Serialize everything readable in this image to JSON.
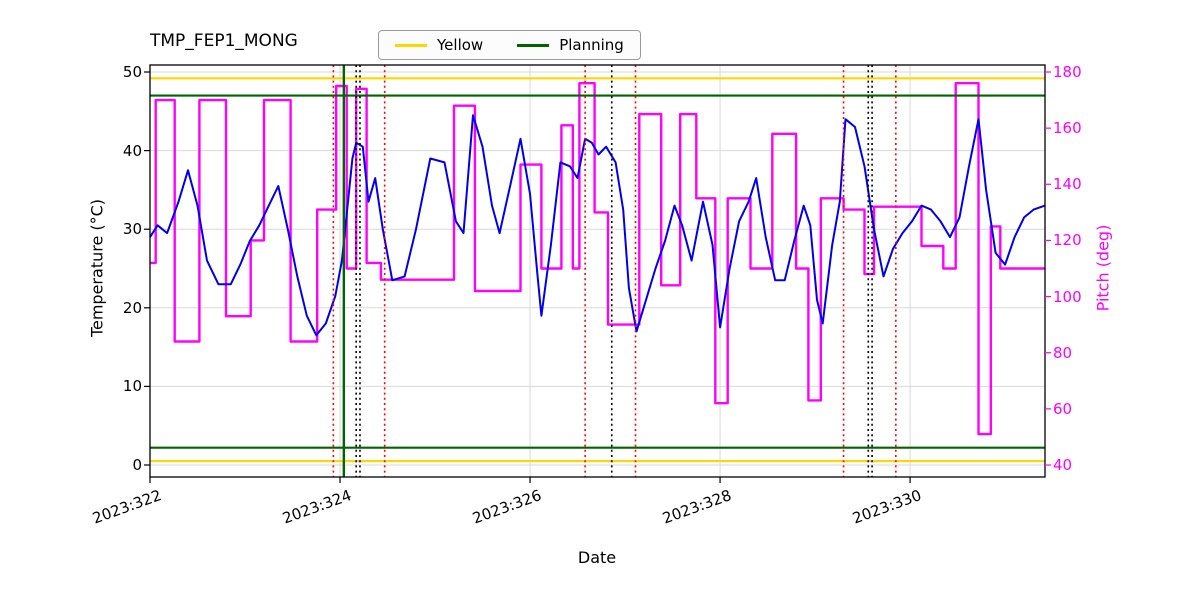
{
  "chart_data": {
    "type": "line",
    "title": "TMP_FEP1_MONG",
    "xlabel": "Date",
    "ylabel_left": "Temperature (°C)",
    "ylabel_right": "Pitch (deg)",
    "grid": true,
    "x_axis": {
      "tick_labels": [
        "2023:322",
        "2023:324",
        "2023:326",
        "2023:328",
        "2023:330"
      ],
      "tick_values": [
        322,
        324,
        326,
        328,
        330
      ],
      "range": [
        322,
        331.42
      ]
    },
    "y_left_axis": {
      "ticks": [
        0,
        10,
        20,
        30,
        40,
        50
      ],
      "range": [
        0,
        50
      ],
      "color": "#000000"
    },
    "y_right_axis": {
      "ticks": [
        40,
        60,
        80,
        100,
        120,
        140,
        160,
        180
      ],
      "range": [
        40,
        180
      ],
      "color": "#ff00ff"
    },
    "legend": {
      "position": "top",
      "items": [
        {
          "label": "Yellow",
          "color": "#ffd700"
        },
        {
          "label": "Planning",
          "color": "#006400"
        }
      ]
    },
    "series": [
      {
        "name": "pitch",
        "axis": "right",
        "color": "#ff00ff",
        "style": "step",
        "width": 2.4,
        "points": [
          [
            322.0,
            112
          ],
          [
            322.06,
            170
          ],
          [
            322.26,
            84
          ],
          [
            322.52,
            170
          ],
          [
            322.8,
            93
          ],
          [
            323.06,
            120
          ],
          [
            323.2,
            170
          ],
          [
            323.48,
            84
          ],
          [
            323.76,
            131
          ],
          [
            323.96,
            175
          ],
          [
            324.07,
            110
          ],
          [
            324.17,
            174
          ],
          [
            324.28,
            112
          ],
          [
            324.43,
            106
          ],
          [
            325.2,
            168
          ],
          [
            325.42,
            102
          ],
          [
            325.9,
            147
          ],
          [
            326.12,
            110
          ],
          [
            326.33,
            161
          ],
          [
            326.45,
            110
          ],
          [
            326.52,
            176
          ],
          [
            326.68,
            130
          ],
          [
            326.82,
            90
          ],
          [
            327.15,
            165
          ],
          [
            327.38,
            104
          ],
          [
            327.58,
            165
          ],
          [
            327.75,
            135
          ],
          [
            327.95,
            62
          ],
          [
            328.08,
            135
          ],
          [
            328.32,
            110
          ],
          [
            328.55,
            158
          ],
          [
            328.8,
            110
          ],
          [
            328.93,
            63
          ],
          [
            329.06,
            135
          ],
          [
            329.3,
            131
          ],
          [
            329.52,
            108
          ],
          [
            329.62,
            132
          ],
          [
            330.12,
            118
          ],
          [
            330.35,
            110
          ],
          [
            330.48,
            176
          ],
          [
            330.72,
            51
          ],
          [
            330.85,
            125
          ],
          [
            330.95,
            110
          ],
          [
            331.42,
            110
          ]
        ]
      },
      {
        "name": "temperature",
        "axis": "left",
        "color": "#0000ee",
        "style": "line",
        "width": 2,
        "points": [
          [
            322.0,
            29
          ],
          [
            322.08,
            30.5
          ],
          [
            322.18,
            29.5
          ],
          [
            322.3,
            33.5
          ],
          [
            322.4,
            37.5
          ],
          [
            322.5,
            33
          ],
          [
            322.6,
            26
          ],
          [
            322.72,
            23
          ],
          [
            322.85,
            23
          ],
          [
            322.95,
            25.5
          ],
          [
            323.05,
            28.5
          ],
          [
            323.15,
            30.5
          ],
          [
            323.25,
            33
          ],
          [
            323.35,
            35.5
          ],
          [
            323.45,
            30
          ],
          [
            323.55,
            24
          ],
          [
            323.65,
            19
          ],
          [
            323.75,
            16.5
          ],
          [
            323.85,
            18
          ],
          [
            323.95,
            21.5
          ],
          [
            324.02,
            26
          ],
          [
            324.08,
            33
          ],
          [
            324.13,
            39
          ],
          [
            324.17,
            41
          ],
          [
            324.24,
            40.5
          ],
          [
            324.3,
            33.5
          ],
          [
            324.37,
            36.5
          ],
          [
            324.45,
            30
          ],
          [
            324.55,
            23.5
          ],
          [
            324.68,
            24
          ],
          [
            324.8,
            30
          ],
          [
            324.95,
            39
          ],
          [
            325.1,
            38.5
          ],
          [
            325.22,
            31
          ],
          [
            325.3,
            29.5
          ],
          [
            325.4,
            44.5
          ],
          [
            325.5,
            40.5
          ],
          [
            325.6,
            33
          ],
          [
            325.68,
            29.5
          ],
          [
            325.8,
            36
          ],
          [
            325.9,
            41.5
          ],
          [
            326.0,
            34.5
          ],
          [
            326.08,
            24
          ],
          [
            326.12,
            19
          ],
          [
            326.22,
            28
          ],
          [
            326.32,
            38.5
          ],
          [
            326.42,
            38
          ],
          [
            326.5,
            36.5
          ],
          [
            326.58,
            41.5
          ],
          [
            326.65,
            41
          ],
          [
            326.72,
            39.5
          ],
          [
            326.8,
            40.5
          ],
          [
            326.9,
            38.5
          ],
          [
            326.98,
            32.5
          ],
          [
            327.04,
            22.5
          ],
          [
            327.12,
            17
          ],
          [
            327.22,
            21
          ],
          [
            327.32,
            25
          ],
          [
            327.42,
            28.5
          ],
          [
            327.52,
            33
          ],
          [
            327.6,
            30.5
          ],
          [
            327.7,
            26
          ],
          [
            327.82,
            33.5
          ],
          [
            327.92,
            28
          ],
          [
            328.0,
            17.5
          ],
          [
            328.1,
            25
          ],
          [
            328.2,
            31
          ],
          [
            328.3,
            33.5
          ],
          [
            328.38,
            36.5
          ],
          [
            328.48,
            29
          ],
          [
            328.58,
            23.5
          ],
          [
            328.68,
            23.5
          ],
          [
            328.78,
            28.5
          ],
          [
            328.88,
            33
          ],
          [
            328.95,
            30.5
          ],
          [
            329.02,
            21
          ],
          [
            329.08,
            18
          ],
          [
            329.18,
            28
          ],
          [
            329.26,
            33.5
          ],
          [
            329.32,
            44
          ],
          [
            329.42,
            43
          ],
          [
            329.52,
            38
          ],
          [
            329.62,
            30
          ],
          [
            329.72,
            24
          ],
          [
            329.82,
            27.5
          ],
          [
            329.92,
            29.5
          ],
          [
            330.02,
            31
          ],
          [
            330.12,
            33
          ],
          [
            330.22,
            32.5
          ],
          [
            330.32,
            31
          ],
          [
            330.42,
            29
          ],
          [
            330.52,
            31.5
          ],
          [
            330.62,
            38
          ],
          [
            330.72,
            44
          ],
          [
            330.8,
            35
          ],
          [
            330.9,
            27
          ],
          [
            331.0,
            25.5
          ],
          [
            331.1,
            29
          ],
          [
            331.2,
            31.5
          ],
          [
            331.3,
            32.5
          ],
          [
            331.42,
            33
          ]
        ]
      }
    ],
    "h_lines": [
      {
        "name": "yellow-limit-high",
        "y": 49.2,
        "axis": "left",
        "color": "#ffd700",
        "width": 2.2
      },
      {
        "name": "yellow-limit-low",
        "y": 0.5,
        "axis": "left",
        "color": "#ffd700",
        "width": 2.2
      },
      {
        "name": "planning-limit-high",
        "y": 47,
        "axis": "left",
        "color": "#006400",
        "width": 2.2
      },
      {
        "name": "planning-limit-low",
        "y": 2.2,
        "axis": "left",
        "color": "#006400",
        "width": 2.2
      }
    ],
    "v_lines": [
      {
        "x": 323.93,
        "color": "#ff0000",
        "style": "dotted"
      },
      {
        "x": 324.04,
        "color": "#006400",
        "style": "solid"
      },
      {
        "x": 324.17,
        "color": "#000000",
        "style": "dotted"
      },
      {
        "x": 324.21,
        "color": "#000000",
        "style": "dotted"
      },
      {
        "x": 324.47,
        "color": "#ff0000",
        "style": "dotted"
      },
      {
        "x": 326.58,
        "color": "#ff0000",
        "style": "dotted"
      },
      {
        "x": 326.86,
        "color": "#000000",
        "style": "dotted"
      },
      {
        "x": 327.11,
        "color": "#ff0000",
        "style": "dotted"
      },
      {
        "x": 329.3,
        "color": "#ff0000",
        "style": "dotted"
      },
      {
        "x": 329.56,
        "color": "#000000",
        "style": "dotted"
      },
      {
        "x": 329.6,
        "color": "#000000",
        "style": "dotted"
      },
      {
        "x": 329.85,
        "color": "#ff0000",
        "style": "dotted"
      }
    ]
  }
}
